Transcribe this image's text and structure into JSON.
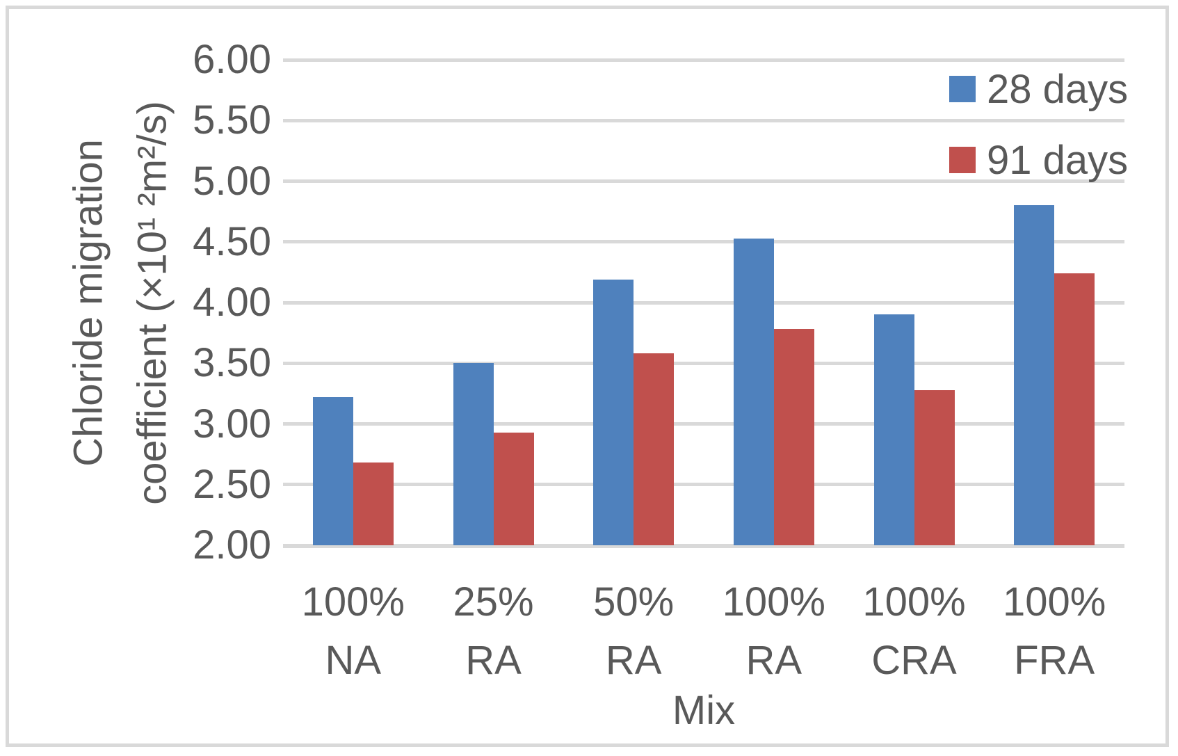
{
  "chart_data": {
    "type": "bar",
    "title": "",
    "categories": [
      [
        "100%",
        "NA"
      ],
      [
        "25%",
        "RA"
      ],
      [
        "50%",
        "RA"
      ],
      [
        "100%",
        "RA"
      ],
      [
        "100%",
        "CRA"
      ],
      [
        "100%",
        "FRA"
      ]
    ],
    "series": [
      {
        "name": "28 days",
        "color": "#4F81BD",
        "values": [
          3.22,
          3.5,
          4.19,
          4.53,
          3.9,
          4.8
        ]
      },
      {
        "name": "91 days",
        "color": "#C0504D",
        "values": [
          2.68,
          2.93,
          3.58,
          3.78,
          3.28,
          4.24
        ]
      }
    ],
    "xlabel": "Mix",
    "ylabel_lines": [
      "Chloride migration",
      "coefficient (×10¹ ²m²/s)"
    ],
    "ylim": [
      2.0,
      6.0
    ],
    "ytick_step": 0.5,
    "ytick_labels": [
      "6.00",
      "5.50",
      "5.00",
      "4.50",
      "4.00",
      "3.50",
      "3.00",
      "2.50",
      "2.00"
    ],
    "grid": true,
    "legend_position": "top-right"
  },
  "colors": {
    "series_blue": "#4F81BD",
    "series_red": "#C0504D",
    "gridline": "#D9D9D9",
    "chart_border": "#D9D9D9",
    "text": "#595959",
    "background": "#FFFFFF"
  }
}
